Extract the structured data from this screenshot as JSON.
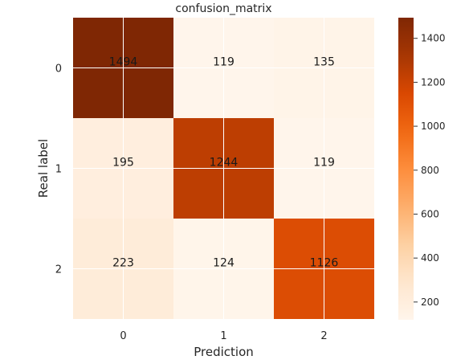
{
  "chart_data": {
    "type": "heatmap",
    "title": "confusion_matrix",
    "xlabel": "Prediction",
    "ylabel": "Real label",
    "x_categories": [
      "0",
      "1",
      "2"
    ],
    "y_categories": [
      "0",
      "1",
      "2"
    ],
    "matrix": [
      [
        1494,
        119,
        135
      ],
      [
        195,
        1244,
        119
      ],
      [
        223,
        124,
        1126
      ]
    ],
    "colormap": "Oranges",
    "color_range": [
      119,
      1494
    ],
    "colorbar_ticks": [
      200,
      400,
      600,
      800,
      1000,
      1200,
      1400
    ],
    "grid": true,
    "grid_color": "#ffffff"
  }
}
